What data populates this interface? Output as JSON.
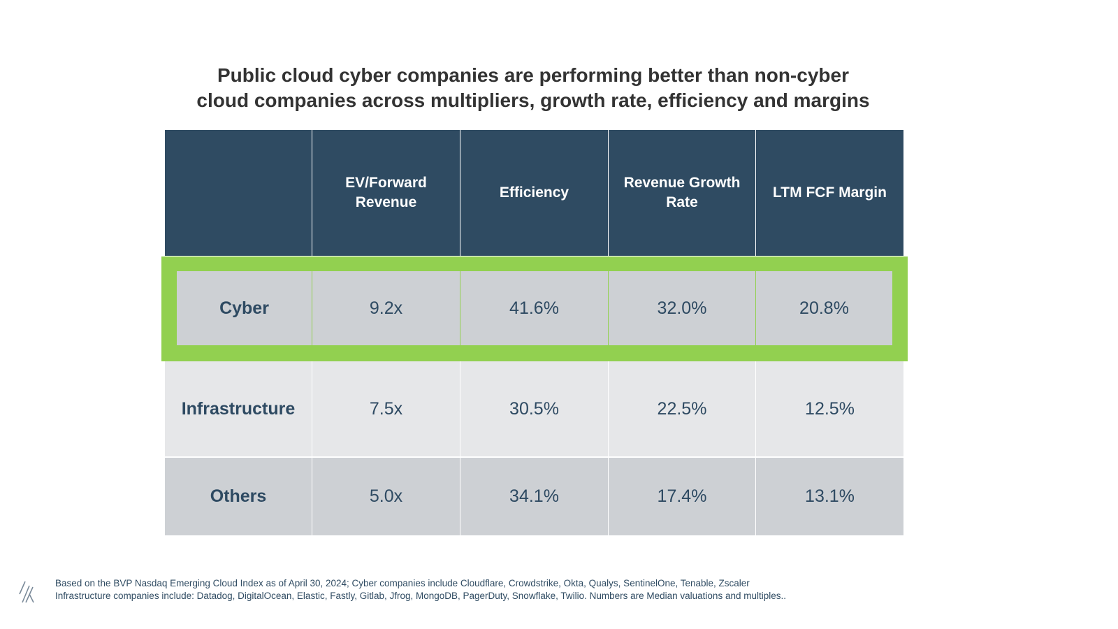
{
  "title": {
    "line1": "Public cloud cyber companies are performing better than non-cyber",
    "line2": "cloud companies across multipliers, growth rate, efficiency and margins"
  },
  "table": {
    "columns": [
      "",
      "EV/Forward Revenue",
      "Efficiency",
      "Revenue Growth Rate",
      "LTM FCF Margin"
    ],
    "rows": [
      {
        "label": "Cyber",
        "values": [
          "9.2x",
          "41.6%",
          "32.0%",
          "20.8%"
        ],
        "highlighted": true
      },
      {
        "label": "Infrastructure",
        "values": [
          "7.5x",
          "30.5%",
          "22.5%",
          "12.5%"
        ]
      },
      {
        "label": "Others",
        "values": [
          "5.0x",
          "34.1%",
          "17.4%",
          "13.1%"
        ]
      }
    ]
  },
  "colors": {
    "header": "#2f4b62",
    "highlight": "#92d050",
    "row_dark": "#cdd0d4",
    "row_light": "#e6e7e9"
  },
  "footnote": {
    "line1": "Based on the BVP Nasdaq Emerging Cloud Index as of April 30, 2024; Cyber companies include Cloudflare, Crowdstrike, Okta, Qualys, SentinelOne, Tenable, Zscaler",
    "line2": "Infrastructure companies include: Datadog, DigitalOcean, Elastic, Fastly, Gitlab, Jfrog, MongoDB, PagerDuty, Snowflake, Twilio. Numbers are Median valuations and multiples.."
  },
  "logo_icon": "bvp-slashes-logo"
}
